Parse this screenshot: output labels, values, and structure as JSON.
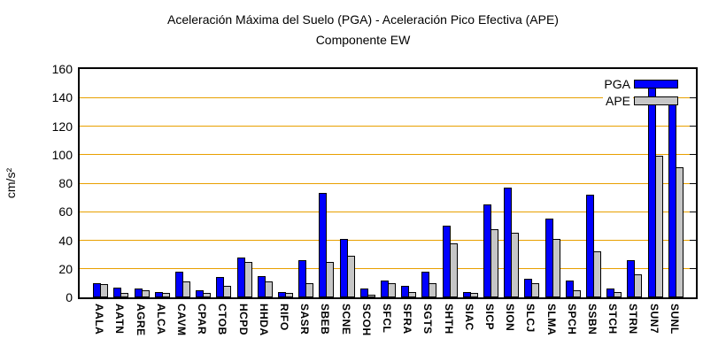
{
  "title": {
    "line1": "Aceleración Máxima del Suelo (PGA) -  Aceleración Pico Efectiva (APE)",
    "line2": "Componente EW"
  },
  "legend": {
    "pga": "PGA",
    "ape": "APE"
  },
  "colors": {
    "pga_bar": "#0000ff",
    "ape_bar": "#c6c6c6",
    "grid_line": "#e8a000",
    "frame": "#000000"
  },
  "chart_data": {
    "type": "bar",
    "title": "Aceleración Máxima del Suelo (PGA) -  Aceleración Pico Efectiva (APE)",
    "subtitle": "Componente EW",
    "xlabel": "",
    "ylabel": "cm/s²",
    "ylim": [
      0,
      160
    ],
    "yticks": [
      0,
      20,
      40,
      60,
      80,
      100,
      120,
      140,
      160
    ],
    "grid": "horizontal",
    "legend_position": "top-right",
    "categories": [
      "AALA",
      "AATN",
      "AGRE",
      "ALCA",
      "CAVM",
      "CPAR",
      "CTOB",
      "HCPD",
      "HHDA",
      "RIFO",
      "SASR",
      "SBEB",
      "SCNE",
      "SCOH",
      "SFCL",
      "SFRA",
      "SGTS",
      "SHTH",
      "SIAC",
      "SICP",
      "SION",
      "SLCJ",
      "SLMA",
      "SPCH",
      "SSBN",
      "STCH",
      "STRN",
      "SUN7",
      "SUNL"
    ],
    "series": [
      {
        "name": "PGA",
        "values": [
          10,
          7,
          6,
          4,
          18,
          5,
          14,
          28,
          15,
          4,
          26,
          73,
          41,
          6,
          12,
          8,
          18,
          50,
          4,
          65,
          77,
          13,
          55,
          12,
          72,
          6,
          26,
          152,
          139
        ]
      },
      {
        "name": "APE",
        "values": [
          9,
          3,
          5,
          3,
          11,
          3,
          8,
          25,
          11,
          3,
          10,
          25,
          29,
          2,
          10,
          4,
          10,
          38,
          3,
          48,
          45,
          10,
          41,
          5,
          32,
          4,
          16,
          99,
          91
        ]
      }
    ]
  }
}
